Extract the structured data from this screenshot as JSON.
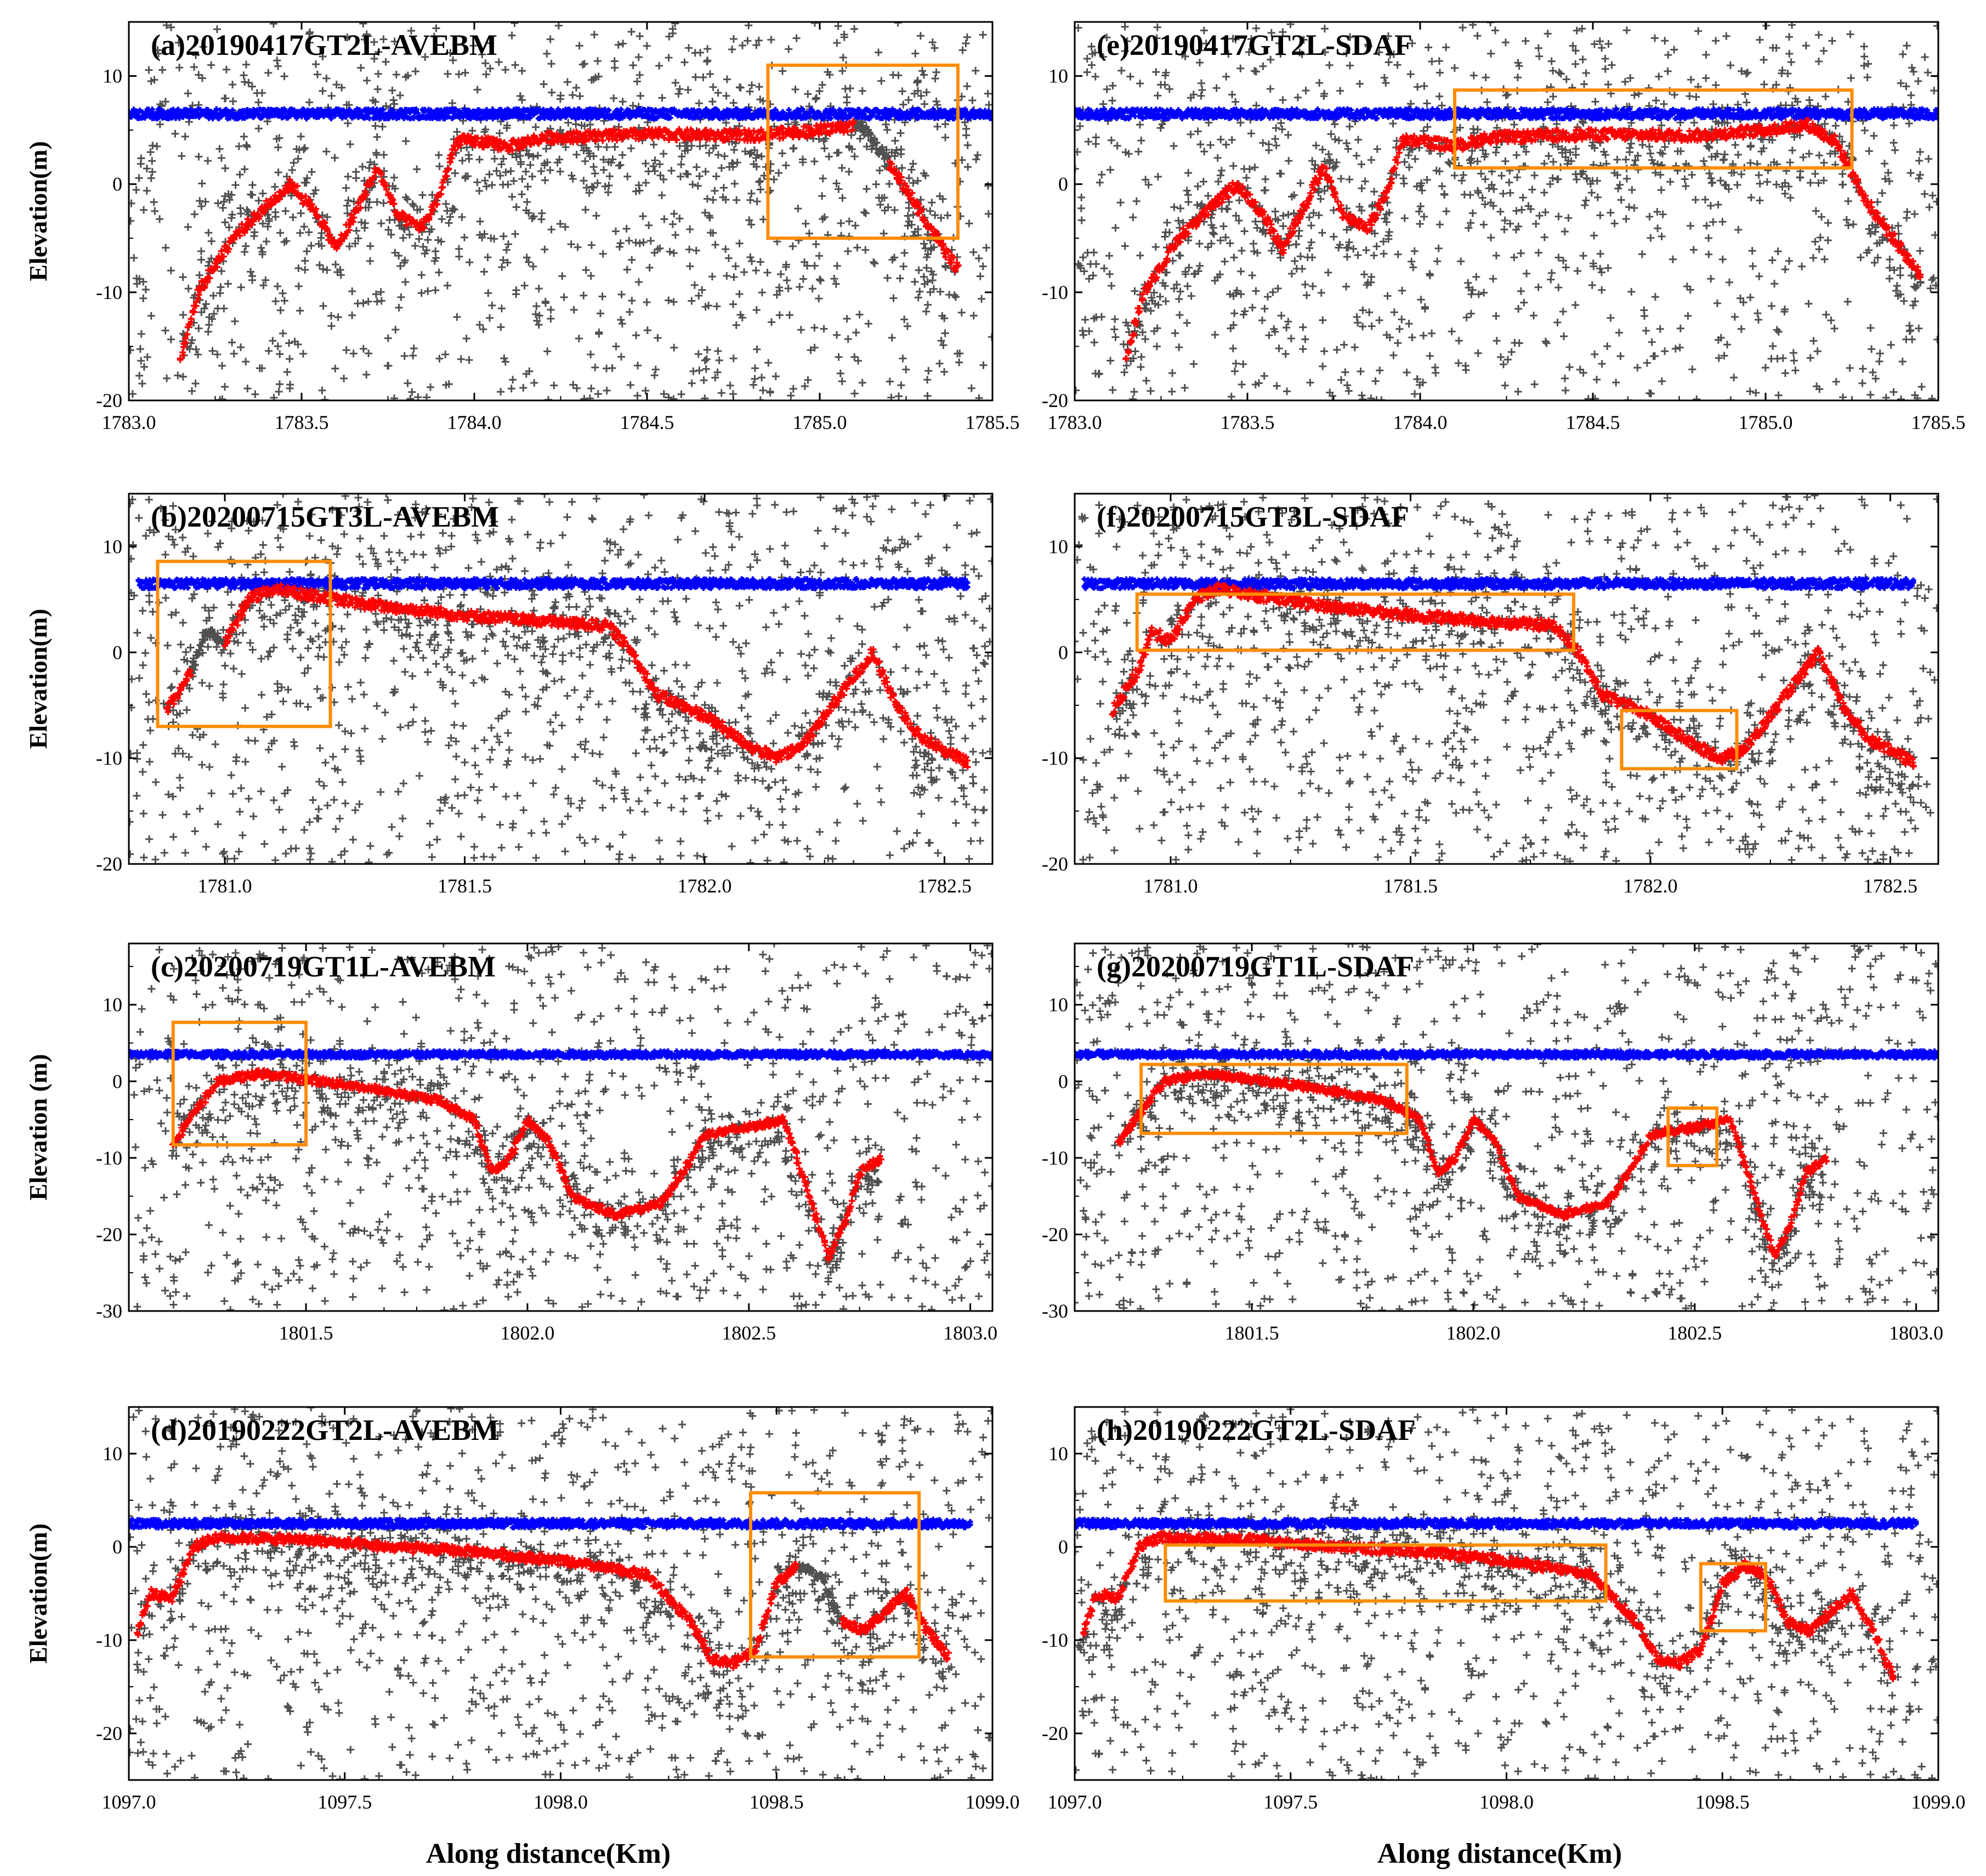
{
  "figure": {
    "x_axis_label": "Along distance(Km)",
    "colors": {
      "noise": "#505050",
      "sea_surface": "#0000ff",
      "seafloor": "#ff0000",
      "box": "#ff8c00"
    }
  },
  "chart_data": [
    {
      "id": "a",
      "type": "scatter",
      "title": "(a)20190417GT2L-AVEBM",
      "ylabel": "Elevation(m)",
      "xlim": [
        1783.0,
        1785.5
      ],
      "ylim": [
        -20,
        15
      ],
      "xticks": [
        "1783.0",
        "1783.5",
        "1784.0",
        "1784.5",
        "1785.0",
        "1785.5"
      ],
      "yticks": [
        "-20",
        "-10",
        "0",
        "10"
      ],
      "sea_surface": {
        "level": 6.5,
        "x_range": [
          1783.0,
          1785.5
        ]
      },
      "seafloor_profile": [
        [
          1783.15,
          -16
        ],
        [
          1783.2,
          -10
        ],
        [
          1783.3,
          -5
        ],
        [
          1783.4,
          -2
        ],
        [
          1783.47,
          0
        ],
        [
          1783.55,
          -3
        ],
        [
          1783.6,
          -6
        ],
        [
          1783.65,
          -3
        ],
        [
          1783.72,
          1.5
        ],
        [
          1783.78,
          -3
        ],
        [
          1783.85,
          -4
        ],
        [
          1783.9,
          -1
        ],
        [
          1783.95,
          4
        ],
        [
          1784.0,
          4
        ],
        [
          1784.1,
          3.5
        ],
        [
          1784.2,
          4.3
        ],
        [
          1784.5,
          4.6
        ],
        [
          1784.8,
          4.5
        ],
        [
          1785.0,
          5
        ],
        [
          1785.12,
          5.5
        ],
        [
          1785.2,
          2
        ],
        [
          1785.3,
          -3
        ],
        [
          1785.4,
          -8
        ]
      ],
      "profile_gaps": [
        [
          1785.1,
          1785.2
        ]
      ],
      "highlight_boxes": [
        {
          "x": [
            1784.85,
            1785.4
          ],
          "y": [
            -5,
            11
          ]
        }
      ]
    },
    {
      "id": "e",
      "type": "scatter",
      "title": "(e)20190417GT2L-SDAF",
      "ylabel": "",
      "xlim": [
        1783.0,
        1785.5
      ],
      "ylim": [
        -20,
        15
      ],
      "xticks": [
        "1783.0",
        "1783.5",
        "1784.0",
        "1784.5",
        "1785.0",
        "1785.5"
      ],
      "yticks": [
        "-20",
        "-10",
        "0",
        "10"
      ],
      "sea_surface": {
        "level": 6.5,
        "x_range": [
          1783.0,
          1785.5
        ]
      },
      "seafloor_profile": [
        [
          1783.15,
          -16
        ],
        [
          1783.2,
          -10
        ],
        [
          1783.3,
          -5
        ],
        [
          1783.4,
          -2
        ],
        [
          1783.47,
          0
        ],
        [
          1783.55,
          -3
        ],
        [
          1783.6,
          -6
        ],
        [
          1783.65,
          -3
        ],
        [
          1783.72,
          1.5
        ],
        [
          1783.78,
          -3
        ],
        [
          1783.85,
          -4
        ],
        [
          1783.9,
          -1
        ],
        [
          1783.95,
          4
        ],
        [
          1784.0,
          4
        ],
        [
          1784.1,
          3.5
        ],
        [
          1784.2,
          4.3
        ],
        [
          1784.5,
          4.6
        ],
        [
          1784.8,
          4.5
        ],
        [
          1785.0,
          5
        ],
        [
          1785.12,
          5.5
        ],
        [
          1785.2,
          4
        ],
        [
          1785.3,
          -2
        ],
        [
          1785.45,
          -8.5
        ]
      ],
      "profile_gaps": [],
      "highlight_boxes": [
        {
          "x": [
            1784.1,
            1785.25
          ],
          "y": [
            1.5,
            8.7
          ]
        }
      ]
    },
    {
      "id": "b",
      "type": "scatter",
      "title": "(b)20200715GT3L-AVEBM",
      "ylabel": "Elevation(m)",
      "xlim": [
        1780.8,
        1782.6
      ],
      "ylim": [
        -20,
        15
      ],
      "xticks": [
        "1781.0",
        "1781.5",
        "1782.0",
        "1782.5"
      ],
      "yticks": [
        "-20",
        "-10",
        "0",
        "10"
      ],
      "sea_surface": {
        "level": 6.5,
        "x_range": [
          1780.82,
          1782.55
        ]
      },
      "seafloor_profile": [
        [
          1780.88,
          -5.5
        ],
        [
          1780.93,
          -2
        ],
        [
          1780.96,
          2
        ],
        [
          1781.0,
          1
        ],
        [
          1781.05,
          5
        ],
        [
          1781.1,
          6
        ],
        [
          1781.3,
          4.5
        ],
        [
          1781.5,
          3.5
        ],
        [
          1781.8,
          2.5
        ],
        [
          1781.85,
          0
        ],
        [
          1781.9,
          -4
        ],
        [
          1781.95,
          -5
        ],
        [
          1782.0,
          -6
        ],
        [
          1782.1,
          -9
        ],
        [
          1782.15,
          -10
        ],
        [
          1782.2,
          -9
        ],
        [
          1782.3,
          -3
        ],
        [
          1782.35,
          0
        ],
        [
          1782.4,
          -5
        ],
        [
          1782.45,
          -8
        ],
        [
          1782.55,
          -10.5
        ]
      ],
      "profile_gaps": [
        [
          1780.93,
          1781.0
        ]
      ],
      "highlight_boxes": [
        {
          "x": [
            1780.86,
            1781.22
          ],
          "y": [
            -7,
            8.6
          ]
        }
      ]
    },
    {
      "id": "f",
      "type": "scatter",
      "title": "(f)20200715GT3L-SDAF",
      "ylabel": "",
      "xlim": [
        1780.8,
        1782.6
      ],
      "ylim": [
        -20,
        15
      ],
      "xticks": [
        "1781.0",
        "1781.5",
        "1782.0",
        "1782.5"
      ],
      "yticks": [
        "-20",
        "-10",
        "0",
        "10"
      ],
      "sea_surface": {
        "level": 6.5,
        "x_range": [
          1780.82,
          1782.55
        ]
      },
      "seafloor_profile": [
        [
          1780.88,
          -5.5
        ],
        [
          1780.93,
          -2
        ],
        [
          1780.96,
          2
        ],
        [
          1781.0,
          1
        ],
        [
          1781.05,
          5
        ],
        [
          1781.1,
          6
        ],
        [
          1781.3,
          4.5
        ],
        [
          1781.5,
          3.5
        ],
        [
          1781.8,
          2.5
        ],
        [
          1781.85,
          0
        ],
        [
          1781.9,
          -4
        ],
        [
          1781.95,
          -5
        ],
        [
          1782.0,
          -6
        ],
        [
          1782.1,
          -9
        ],
        [
          1782.15,
          -10
        ],
        [
          1782.2,
          -9
        ],
        [
          1782.3,
          -3
        ],
        [
          1782.35,
          0
        ],
        [
          1782.4,
          -5
        ],
        [
          1782.45,
          -8
        ],
        [
          1782.55,
          -10.5
        ]
      ],
      "profile_gaps": [],
      "highlight_boxes": [
        {
          "x": [
            1780.93,
            1781.84
          ],
          "y": [
            0.2,
            5.5
          ]
        },
        {
          "x": [
            1781.94,
            1782.18
          ],
          "y": [
            -11,
            -5.5
          ]
        }
      ]
    },
    {
      "id": "c",
      "type": "scatter",
      "title": "(c)20200719GT1L-AVEBM",
      "ylabel": "Elevation (m)",
      "xlim": [
        1801.1,
        1803.05
      ],
      "ylim": [
        -30,
        18
      ],
      "xticks": [
        "1801.5",
        "1802.0",
        "1802.5",
        "1803.0"
      ],
      "yticks": [
        "-30",
        "-20",
        "-10",
        "0",
        "10"
      ],
      "sea_surface": {
        "level": 3.5,
        "x_range": [
          1801.1,
          1803.05
        ]
      },
      "seafloor_profile": [
        [
          1801.2,
          -8
        ],
        [
          1801.25,
          -4
        ],
        [
          1801.3,
          0
        ],
        [
          1801.4,
          1
        ],
        [
          1801.6,
          -0.5
        ],
        [
          1801.8,
          -2.5
        ],
        [
          1801.88,
          -5
        ],
        [
          1801.92,
          -12
        ],
        [
          1801.96,
          -10
        ],
        [
          1802.0,
          -5
        ],
        [
          1802.05,
          -8
        ],
        [
          1802.1,
          -15
        ],
        [
          1802.2,
          -17.5
        ],
        [
          1802.3,
          -16
        ],
        [
          1802.35,
          -12
        ],
        [
          1802.4,
          -7
        ],
        [
          1802.5,
          -6
        ],
        [
          1802.58,
          -5
        ],
        [
          1802.62,
          -12
        ],
        [
          1802.68,
          -23
        ],
        [
          1802.72,
          -18
        ],
        [
          1802.75,
          -12
        ],
        [
          1802.8,
          -10
        ]
      ],
      "profile_gaps": [
        [
          1802.8,
          1802.92
        ]
      ],
      "highlight_boxes": [
        {
          "x": [
            1801.2,
            1801.5
          ],
          "y": [
            -8.3,
            7.7
          ]
        }
      ]
    },
    {
      "id": "g",
      "type": "scatter",
      "title": "(g)20200719GT1L-SDAF",
      "ylabel": "",
      "xlim": [
        1801.1,
        1803.05
      ],
      "ylim": [
        -30,
        18
      ],
      "xticks": [
        "1801.5",
        "1802.0",
        "1802.5",
        "1803.0"
      ],
      "yticks": [
        "-30",
        "-20",
        "-10",
        "0",
        "10"
      ],
      "sea_surface": {
        "level": 3.5,
        "x_range": [
          1801.1,
          1803.05
        ]
      },
      "seafloor_profile": [
        [
          1801.2,
          -8
        ],
        [
          1801.25,
          -4
        ],
        [
          1801.3,
          0
        ],
        [
          1801.4,
          1
        ],
        [
          1801.6,
          -0.5
        ],
        [
          1801.8,
          -2.5
        ],
        [
          1801.88,
          -5
        ],
        [
          1801.92,
          -12
        ],
        [
          1801.96,
          -10
        ],
        [
          1802.0,
          -5
        ],
        [
          1802.05,
          -8
        ],
        [
          1802.1,
          -15
        ],
        [
          1802.2,
          -17.5
        ],
        [
          1802.3,
          -16
        ],
        [
          1802.35,
          -12
        ],
        [
          1802.4,
          -7
        ],
        [
          1802.5,
          -6
        ],
        [
          1802.58,
          -5
        ],
        [
          1802.62,
          -12
        ],
        [
          1802.68,
          -23
        ],
        [
          1802.72,
          -18
        ],
        [
          1802.75,
          -12
        ],
        [
          1802.8,
          -10
        ]
      ],
      "profile_gaps": [
        [
          1802.8,
          1802.92
        ]
      ],
      "highlight_boxes": [
        {
          "x": [
            1801.25,
            1801.85
          ],
          "y": [
            -6.8,
            2.2
          ]
        },
        {
          "x": [
            1802.44,
            1802.55
          ],
          "y": [
            -11,
            -3.5
          ]
        }
      ]
    },
    {
      "id": "d",
      "type": "scatter",
      "title": "(d)20190222GT2L-AVEBM",
      "ylabel": "Elevation(m)",
      "xlim": [
        1097.0,
        1099.0
      ],
      "ylim": [
        -25,
        15
      ],
      "xticks": [
        "1097.0",
        "1097.5",
        "1098.0",
        "1098.5",
        "1099.0"
      ],
      "yticks": [
        "-20",
        "-10",
        "0",
        "10"
      ],
      "sea_surface": {
        "level": 2.5,
        "x_range": [
          1097.0,
          1098.95
        ]
      },
      "seafloor_profile": [
        [
          1097.02,
          -9
        ],
        [
          1097.05,
          -5
        ],
        [
          1097.1,
          -5.5
        ],
        [
          1097.15,
          0
        ],
        [
          1097.2,
          1
        ],
        [
          1097.4,
          0.8
        ],
        [
          1097.6,
          0
        ],
        [
          1097.8,
          -0.5
        ],
        [
          1098.0,
          -1.5
        ],
        [
          1098.2,
          -3
        ],
        [
          1098.3,
          -8
        ],
        [
          1098.35,
          -12
        ],
        [
          1098.4,
          -12.5
        ],
        [
          1098.45,
          -11
        ],
        [
          1098.5,
          -4
        ],
        [
          1098.55,
          -2
        ],
        [
          1098.6,
          -3
        ],
        [
          1098.65,
          -8
        ],
        [
          1098.7,
          -9
        ],
        [
          1098.8,
          -5
        ],
        [
          1098.85,
          -9
        ],
        [
          1098.9,
          -12
        ]
      ],
      "profile_gaps": [
        [
          1098.55,
          1098.65
        ]
      ],
      "highlight_boxes": [
        {
          "x": [
            1098.44,
            1098.83
          ],
          "y": [
            -11.8,
            5.8
          ]
        }
      ]
    },
    {
      "id": "h",
      "type": "scatter",
      "title": "(h)20190222GT2L-SDAF",
      "ylabel": "",
      "xlim": [
        1097.0,
        1099.0
      ],
      "ylim": [
        -25,
        15
      ],
      "xticks": [
        "1097.0",
        "1097.5",
        "1098.0",
        "1098.5",
        "1099.0"
      ],
      "yticks": [
        "-20",
        "-10",
        "0",
        "10"
      ],
      "sea_surface": {
        "level": 2.5,
        "x_range": [
          1097.0,
          1098.95
        ]
      },
      "seafloor_profile": [
        [
          1097.02,
          -9
        ],
        [
          1097.05,
          -5
        ],
        [
          1097.1,
          -5.5
        ],
        [
          1097.15,
          0
        ],
        [
          1097.2,
          1
        ],
        [
          1097.4,
          0.8
        ],
        [
          1097.6,
          0
        ],
        [
          1097.8,
          -0.5
        ],
        [
          1098.0,
          -1.5
        ],
        [
          1098.2,
          -3
        ],
        [
          1098.3,
          -8
        ],
        [
          1098.35,
          -12
        ],
        [
          1098.4,
          -12.5
        ],
        [
          1098.45,
          -11
        ],
        [
          1098.5,
          -4
        ],
        [
          1098.55,
          -2
        ],
        [
          1098.6,
          -3
        ],
        [
          1098.65,
          -8
        ],
        [
          1098.7,
          -9
        ],
        [
          1098.8,
          -5
        ],
        [
          1098.85,
          -9
        ],
        [
          1098.9,
          -14.5
        ]
      ],
      "profile_gaps": [],
      "highlight_boxes": [
        {
          "x": [
            1097.21,
            1098.23
          ],
          "y": [
            -5.8,
            0.2
          ]
        },
        {
          "x": [
            1098.45,
            1098.6
          ],
          "y": [
            -9,
            -1.8
          ]
        }
      ]
    }
  ]
}
